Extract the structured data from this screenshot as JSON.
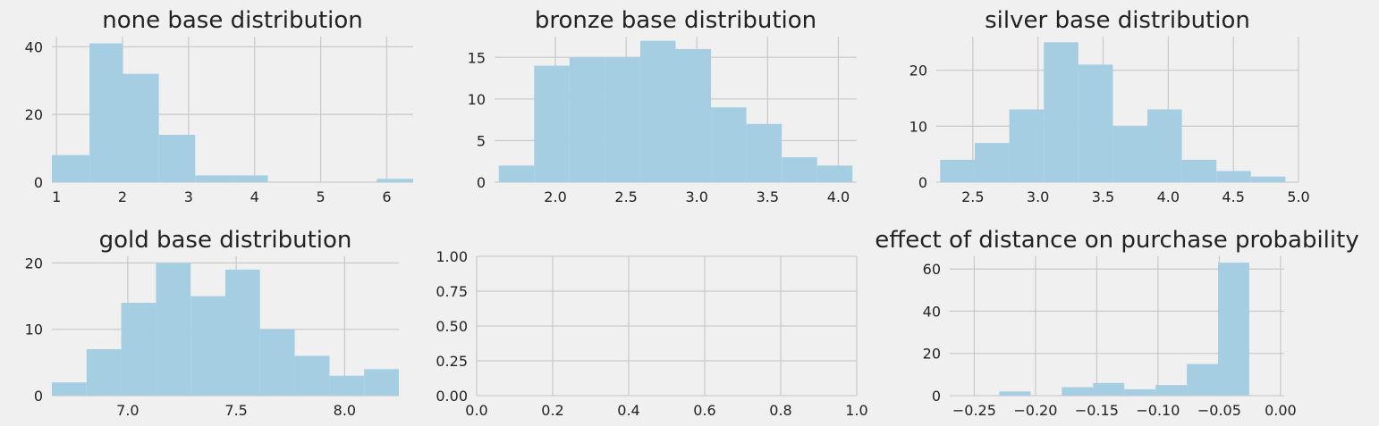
{
  "colors": {
    "background": "#f0f0f0",
    "grid": "#cbcbcb",
    "bar": "#a6cee3",
    "text": "#222222"
  },
  "chart_data": [
    {
      "type": "bar",
      "title": "none base distribution",
      "xlim": [
        0.93,
        6.4
      ],
      "ylim": [
        0,
        43
      ],
      "xticks": [
        1,
        2,
        3,
        4,
        5,
        6
      ],
      "xtick_labels": [
        "1",
        "2",
        "3",
        "4",
        "5",
        "6"
      ],
      "yticks": [
        0,
        20,
        40
      ],
      "ytick_labels": [
        "0",
        "20",
        "40"
      ],
      "bin_edges": [
        0.93,
        1.5,
        2.0,
        2.55,
        3.1,
        3.65,
        4.2,
        4.75,
        5.3,
        5.85,
        6.4
      ],
      "values": [
        8,
        41,
        32,
        14,
        2,
        2,
        0,
        0,
        0,
        1
      ],
      "grid": true
    },
    {
      "type": "bar",
      "title": "bronze base distribution",
      "xlim": [
        1.57,
        4.13
      ],
      "ylim": [
        0,
        17.5
      ],
      "xticks": [
        2.0,
        2.5,
        3.0,
        3.5,
        4.0
      ],
      "xtick_labels": [
        "2.0",
        "2.5",
        "3.0",
        "3.5",
        "4.0"
      ],
      "yticks": [
        0,
        5,
        10,
        15
      ],
      "ytick_labels": [
        "0",
        "5",
        "10",
        "15"
      ],
      "bin_edges": [
        1.6,
        1.85,
        2.1,
        2.35,
        2.6,
        2.85,
        3.1,
        3.35,
        3.6,
        3.85,
        4.1
      ],
      "values": [
        2,
        14,
        15,
        15,
        17,
        16,
        9,
        7,
        3,
        2
      ],
      "grid": true
    },
    {
      "type": "bar",
      "title": "silver base distribution",
      "xlim": [
        2.22,
        5.0
      ],
      "ylim": [
        0,
        26
      ],
      "xticks": [
        2.5,
        3.0,
        3.5,
        4.0,
        4.5,
        5.0
      ],
      "xtick_labels": [
        "2.5",
        "3.0",
        "3.5",
        "4.0",
        "4.5",
        "5.0"
      ],
      "yticks": [
        0,
        10,
        20
      ],
      "ytick_labels": [
        "0",
        "10",
        "20"
      ],
      "bin_edges": [
        2.25,
        2.515,
        2.78,
        3.045,
        3.31,
        3.575,
        3.84,
        4.105,
        4.37,
        4.635,
        4.9
      ],
      "values": [
        4,
        7,
        13,
        25,
        21,
        10,
        13,
        4,
        2,
        1
      ],
      "grid": true
    },
    {
      "type": "bar",
      "title": "gold base distribution",
      "xlim": [
        6.65,
        8.25
      ],
      "ylim": [
        0,
        21
      ],
      "xticks": [
        7.0,
        7.5,
        8.0
      ],
      "xtick_labels": [
        "7.0",
        "7.5",
        "8.0"
      ],
      "yticks": [
        0,
        10,
        20
      ],
      "ytick_labels": [
        "0",
        "10",
        "20"
      ],
      "bin_edges": [
        6.65,
        6.81,
        6.97,
        7.13,
        7.29,
        7.45,
        7.61,
        7.77,
        7.93,
        8.09,
        8.25
      ],
      "values": [
        2,
        7,
        14,
        20,
        15,
        19,
        10,
        6,
        3,
        4
      ],
      "grid": true
    },
    {
      "type": "bar",
      "title": "",
      "xlim": [
        0,
        1
      ],
      "ylim": [
        0,
        1
      ],
      "xticks": [
        0,
        0.2,
        0.4,
        0.6,
        0.8,
        1.0
      ],
      "xtick_labels": [
        "0.0",
        "0.2",
        "0.4",
        "0.6",
        "0.8",
        "1.0"
      ],
      "yticks": [
        0,
        0.25,
        0.5,
        0.75,
        1.0
      ],
      "ytick_labels": [
        "0.00",
        "0.25",
        "0.50",
        "0.75",
        "1.00"
      ],
      "bin_edges": [],
      "values": [],
      "grid": true
    },
    {
      "type": "bar",
      "title": "effect of distance on purchase probability",
      "xlim": [
        -0.27,
        0.003
      ],
      "ylim": [
        0,
        66
      ],
      "xticks": [
        -0.25,
        -0.2,
        -0.15,
        -0.1,
        -0.05,
        0.0
      ],
      "xtick_labels": [
        "−0.25",
        "−0.20",
        "−0.15",
        "−0.10",
        "−0.05",
        "0.00"
      ],
      "yticks": [
        0,
        20,
        40,
        60
      ],
      "ytick_labels": [
        "0",
        "20",
        "40",
        "60"
      ],
      "bin_edges": [
        -0.255,
        -0.2295,
        -0.204,
        -0.1785,
        -0.153,
        -0.1275,
        -0.102,
        -0.0765,
        -0.051,
        -0.0255,
        0.0
      ],
      "values": [
        0,
        2,
        0,
        4,
        6,
        3,
        5,
        15,
        63,
        0
      ],
      "grid": true
    }
  ]
}
